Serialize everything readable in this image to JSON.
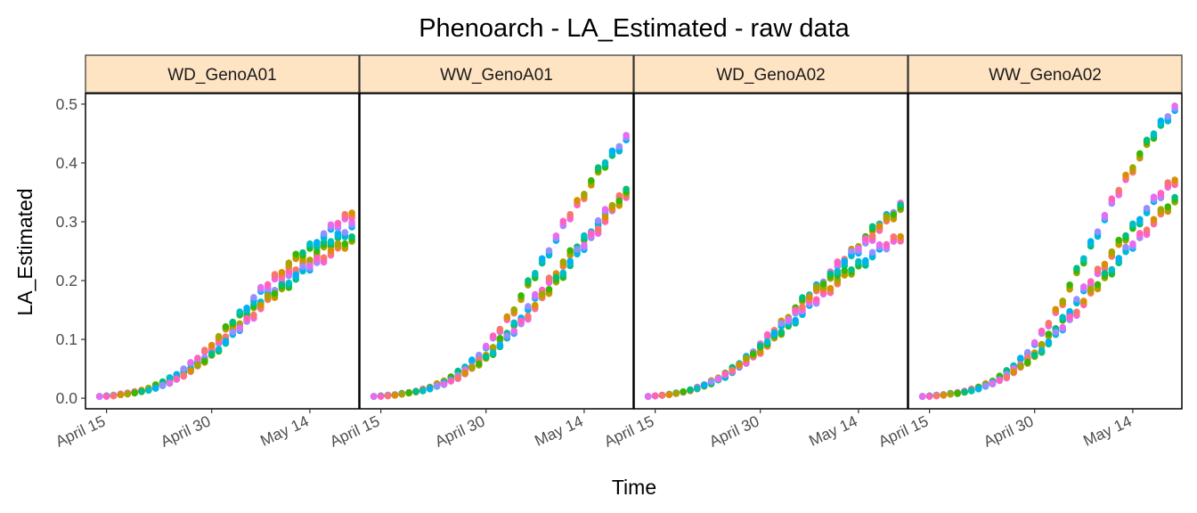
{
  "chart_data": {
    "type": "scatter",
    "title": "Phenoarch - LA_Estimated - raw data",
    "xlabel": "Time",
    "ylabel": "LA_Estimated",
    "x_ticks": [
      "April 15",
      "April 30",
      "May 14"
    ],
    "y_ticks": [
      "0.0",
      "0.1",
      "0.2",
      "0.3",
      "0.4",
      "0.5"
    ],
    "y_tick_values": [
      0,
      0.1,
      0.2,
      0.3,
      0.4,
      0.5
    ],
    "x_range": [
      "2025-04-12",
      "2025-05-21"
    ],
    "x_tick_dates": [
      "2025-04-15",
      "2025-04-30",
      "2025-05-14"
    ],
    "ylim": [
      -0.018,
      0.518
    ],
    "grid": false,
    "legend": "none",
    "palette": [
      "#F8766D",
      "#D89000",
      "#A3A500",
      "#39B600",
      "#00BF7D",
      "#00BFC4",
      "#00B0F6",
      "#9590FF",
      "#E76BF3",
      "#FF62BC"
    ],
    "dates": [
      "2025-04-14",
      "2025-04-15",
      "2025-04-16",
      "2025-04-17",
      "2025-04-18",
      "2025-04-19",
      "2025-04-20",
      "2025-04-21",
      "2025-04-22",
      "2025-04-23",
      "2025-04-24",
      "2025-04-25",
      "2025-04-26",
      "2025-04-27",
      "2025-04-28",
      "2025-04-29",
      "2025-04-30",
      "2025-05-01",
      "2025-05-02",
      "2025-05-03",
      "2025-05-04",
      "2025-05-05",
      "2025-05-06",
      "2025-05-07",
      "2025-05-08",
      "2025-05-09",
      "2025-05-10",
      "2025-05-11",
      "2025-05-12",
      "2025-05-13",
      "2025-05-14",
      "2025-05-15",
      "2025-05-16",
      "2025-05-17",
      "2025-05-18",
      "2025-05-19",
      "2025-05-20"
    ],
    "panels": [
      {
        "label": "WD_GenoA01",
        "series": [
          {
            "values": [
              0.003,
              0.004,
              0.005,
              0.006,
              0.008,
              0.01,
              0.012,
              0.015,
              0.019,
              0.024,
              0.03,
              0.036,
              0.043,
              0.051,
              0.06,
              0.07,
              0.081,
              0.092,
              0.104,
              0.116,
              0.128,
              0.14,
              0.152,
              0.163,
              0.174,
              0.185,
              0.196,
              0.207,
              0.217,
              0.227,
              0.236,
              0.246,
              0.256,
              0.265,
              0.274,
              0.283,
              0.295
            ]
          },
          {
            "values": [
              0.003,
              0.004,
              0.005,
              0.007,
              0.009,
              0.011,
              0.014,
              0.017,
              0.022,
              0.028,
              0.034,
              0.041,
              0.049,
              0.058,
              0.068,
              0.079,
              0.091,
              0.103,
              0.116,
              0.129,
              0.142,
              0.155,
              0.168,
              0.18,
              0.192,
              0.204,
              0.215,
              0.226,
              0.236,
              0.246,
              0.256,
              0.266,
              0.276,
              0.286,
              0.296,
              0.306,
              0.316
            ]
          },
          {
            "values": [
              0.003,
              0.003,
              0.004,
              0.006,
              0.007,
              0.009,
              0.011,
              0.014,
              0.017,
              0.021,
              0.026,
              0.032,
              0.039,
              0.046,
              0.054,
              0.063,
              0.073,
              0.084,
              0.095,
              0.107,
              0.119,
              0.131,
              0.143,
              0.155,
              0.166,
              0.177,
              0.187,
              0.197,
              0.206,
              0.215,
              0.224,
              0.232,
              0.24,
              0.247,
              0.254,
              0.261,
              0.268
            ]
          }
        ]
      },
      {
        "label": "WW_GenoA01",
        "series": [
          {
            "values": [
              0.003,
              0.004,
              0.005,
              0.006,
              0.008,
              0.01,
              0.012,
              0.015,
              0.019,
              0.024,
              0.03,
              0.036,
              0.044,
              0.053,
              0.063,
              0.074,
              0.087,
              0.101,
              0.117,
              0.134,
              0.152,
              0.171,
              0.191,
              0.211,
              0.231,
              0.252,
              0.272,
              0.292,
              0.311,
              0.33,
              0.348,
              0.366,
              0.383,
              0.399,
              0.414,
              0.429,
              0.443
            ]
          },
          {
            "values": [
              0.003,
              0.004,
              0.005,
              0.006,
              0.007,
              0.009,
              0.011,
              0.014,
              0.017,
              0.021,
              0.026,
              0.032,
              0.038,
              0.046,
              0.054,
              0.063,
              0.074,
              0.085,
              0.097,
              0.11,
              0.124,
              0.138,
              0.153,
              0.168,
              0.183,
              0.198,
              0.213,
              0.228,
              0.242,
              0.256,
              0.27,
              0.284,
              0.298,
              0.312,
              0.325,
              0.338,
              0.35
            ]
          },
          {
            "values": [
              0.003,
              0.003,
              0.004,
              0.005,
              0.007,
              0.009,
              0.011,
              0.013,
              0.016,
              0.02,
              0.024,
              0.029,
              0.035,
              0.042,
              0.05,
              0.058,
              0.068,
              0.078,
              0.089,
              0.101,
              0.114,
              0.127,
              0.141,
              0.155,
              0.169,
              0.184,
              0.199,
              0.214,
              0.229,
              0.244,
              0.259,
              0.274,
              0.289,
              0.304,
              0.319,
              0.334,
              0.349
            ]
          }
        ]
      },
      {
        "label": "WD_GenoA02",
        "series": [
          {
            "values": [
              0.003,
              0.004,
              0.005,
              0.007,
              0.009,
              0.011,
              0.014,
              0.018,
              0.023,
              0.029,
              0.035,
              0.042,
              0.05,
              0.059,
              0.069,
              0.08,
              0.091,
              0.103,
              0.115,
              0.127,
              0.139,
              0.151,
              0.163,
              0.175,
              0.187,
              0.199,
              0.211,
              0.223,
              0.235,
              0.247,
              0.259,
              0.271,
              0.283,
              0.295,
              0.306,
              0.317,
              0.328
            ]
          },
          {
            "values": [
              0.003,
              0.004,
              0.005,
              0.006,
              0.008,
              0.01,
              0.013,
              0.016,
              0.02,
              0.025,
              0.031,
              0.037,
              0.044,
              0.052,
              0.061,
              0.07,
              0.08,
              0.09,
              0.101,
              0.112,
              0.123,
              0.134,
              0.145,
              0.156,
              0.167,
              0.178,
              0.188,
              0.198,
              0.208,
              0.217,
              0.226,
              0.235,
              0.244,
              0.252,
              0.26,
              0.268,
              0.276
            ]
          },
          {
            "values": [
              0.003,
              0.004,
              0.005,
              0.006,
              0.008,
              0.011,
              0.014,
              0.017,
              0.022,
              0.027,
              0.033,
              0.04,
              0.048,
              0.056,
              0.065,
              0.075,
              0.086,
              0.097,
              0.109,
              0.121,
              0.133,
              0.145,
              0.157,
              0.169,
              0.181,
              0.193,
              0.205,
              0.217,
              0.229,
              0.241,
              0.253,
              0.265,
              0.277,
              0.289,
              0.3,
              0.311,
              0.322
            ]
          }
        ]
      },
      {
        "label": "WW_GenoA02",
        "series": [
          {
            "values": [
              0.003,
              0.004,
              0.005,
              0.006,
              0.008,
              0.01,
              0.012,
              0.015,
              0.019,
              0.024,
              0.03,
              0.037,
              0.045,
              0.055,
              0.066,
              0.079,
              0.093,
              0.109,
              0.127,
              0.146,
              0.167,
              0.189,
              0.212,
              0.236,
              0.26,
              0.284,
              0.307,
              0.33,
              0.352,
              0.373,
              0.393,
              0.412,
              0.43,
              0.448,
              0.465,
              0.48,
              0.493
            ]
          },
          {
            "values": [
              0.003,
              0.004,
              0.005,
              0.006,
              0.007,
              0.009,
              0.011,
              0.014,
              0.018,
              0.022,
              0.027,
              0.033,
              0.04,
              0.048,
              0.057,
              0.067,
              0.078,
              0.09,
              0.104,
              0.118,
              0.133,
              0.149,
              0.165,
              0.181,
              0.197,
              0.213,
              0.229,
              0.245,
              0.26,
              0.275,
              0.29,
              0.305,
              0.319,
              0.333,
              0.347,
              0.36,
              0.372
            ]
          },
          {
            "values": [
              0.003,
              0.003,
              0.004,
              0.005,
              0.007,
              0.008,
              0.01,
              0.013,
              0.016,
              0.02,
              0.025,
              0.03,
              0.036,
              0.044,
              0.052,
              0.061,
              0.071,
              0.082,
              0.094,
              0.107,
              0.12,
              0.134,
              0.148,
              0.162,
              0.177,
              0.192,
              0.206,
              0.22,
              0.234,
              0.248,
              0.261,
              0.274,
              0.287,
              0.3,
              0.312,
              0.324,
              0.335
            ]
          }
        ]
      }
    ]
  }
}
